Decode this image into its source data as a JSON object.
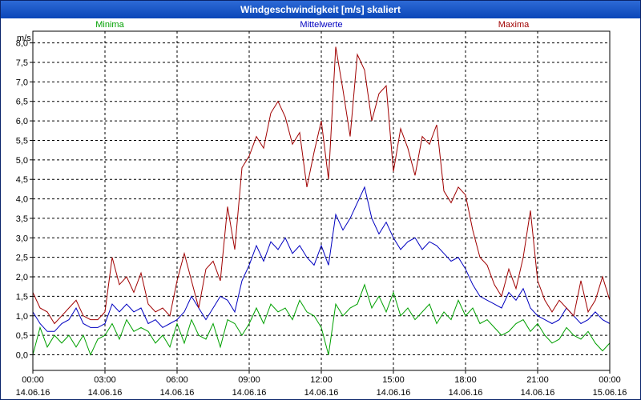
{
  "chart_data": {
    "type": "line",
    "title": "Windgeschwindigkeit [m/s] skaliert",
    "ylabel": "m/s",
    "ylim": [
      -0.4,
      8.3
    ],
    "yticks": [
      "0,0",
      "0,5",
      "1,0",
      "1,5",
      "2,0",
      "2,5",
      "3,0",
      "3,5",
      "4,0",
      "4,5",
      "5,0",
      "5,5",
      "6,0",
      "6,5",
      "7,0",
      "7,5",
      "8,0"
    ],
    "x_ticks": [
      {
        "time": "00:00",
        "date": "14.06.16"
      },
      {
        "time": "03:00",
        "date": "14.06.16"
      },
      {
        "time": "06:00",
        "date": "14.06.16"
      },
      {
        "time": "09:00",
        "date": "14.06.16"
      },
      {
        "time": "12:00",
        "date": "14.06.16"
      },
      {
        "time": "15:00",
        "date": "14.06.16"
      },
      {
        "time": "18:00",
        "date": "14.06.16"
      },
      {
        "time": "21:00",
        "date": "14.06.16"
      },
      {
        "time": "00:00",
        "date": "15.06.16"
      }
    ],
    "x_unit": "hours since 14.06.16 00:00",
    "xlim": [
      0,
      24
    ],
    "grid": true,
    "series": [
      {
        "name": "Minima",
        "color": "#00a000",
        "x": [
          0,
          0.3,
          0.6,
          0.9,
          1.2,
          1.5,
          1.8,
          2.1,
          2.4,
          2.7,
          3.0,
          3.3,
          3.6,
          3.9,
          4.2,
          4.5,
          4.8,
          5.1,
          5.4,
          5.7,
          6.0,
          6.3,
          6.6,
          6.9,
          7.2,
          7.5,
          7.8,
          8.1,
          8.4,
          8.7,
          9.0,
          9.3,
          9.6,
          9.9,
          10.2,
          10.5,
          10.8,
          11.1,
          11.4,
          11.7,
          12.0,
          12.3,
          12.6,
          12.9,
          13.2,
          13.5,
          13.8,
          14.1,
          14.4,
          14.7,
          15.0,
          15.3,
          15.6,
          15.9,
          16.2,
          16.5,
          16.8,
          17.1,
          17.4,
          17.7,
          18.0,
          18.3,
          18.6,
          18.9,
          19.2,
          19.5,
          19.8,
          20.1,
          20.4,
          20.7,
          21.0,
          21.3,
          21.6,
          21.9,
          22.2,
          22.5,
          22.8,
          23.1,
          23.4,
          23.7,
          24.0
        ],
        "values": [
          0.0,
          0.7,
          0.2,
          0.5,
          0.3,
          0.5,
          0.2,
          0.5,
          0.0,
          0.4,
          0.5,
          0.8,
          0.4,
          0.9,
          0.6,
          0.7,
          0.6,
          0.3,
          0.5,
          0.2,
          0.8,
          0.3,
          0.9,
          0.5,
          0.4,
          0.8,
          0.2,
          0.9,
          0.8,
          0.5,
          0.8,
          1.2,
          0.8,
          1.3,
          1.1,
          1.2,
          0.9,
          1.4,
          1.1,
          1.0,
          0.7,
          0.0,
          1.3,
          1.0,
          1.2,
          1.3,
          1.8,
          1.2,
          1.5,
          1.1,
          1.6,
          1.0,
          1.2,
          0.9,
          1.1,
          1.3,
          0.8,
          1.1,
          0.9,
          1.4,
          1.0,
          1.2,
          0.8,
          0.9,
          0.7,
          0.5,
          0.6,
          0.8,
          0.9,
          0.6,
          0.8,
          0.5,
          0.3,
          0.4,
          0.7,
          0.5,
          0.4,
          0.6,
          0.3,
          0.1,
          0.3
        ]
      },
      {
        "name": "Mittelwerte",
        "color": "#0000c0",
        "x": [
          0,
          0.3,
          0.6,
          0.9,
          1.2,
          1.5,
          1.8,
          2.1,
          2.4,
          2.7,
          3.0,
          3.3,
          3.6,
          3.9,
          4.2,
          4.5,
          4.8,
          5.1,
          5.4,
          5.7,
          6.0,
          6.3,
          6.6,
          6.9,
          7.2,
          7.5,
          7.8,
          8.1,
          8.4,
          8.7,
          9.0,
          9.3,
          9.6,
          9.9,
          10.2,
          10.5,
          10.8,
          11.1,
          11.4,
          11.7,
          12.0,
          12.3,
          12.6,
          12.9,
          13.2,
          13.5,
          13.8,
          14.1,
          14.4,
          14.7,
          15.0,
          15.3,
          15.6,
          15.9,
          16.2,
          16.5,
          16.8,
          17.1,
          17.4,
          17.7,
          18.0,
          18.3,
          18.6,
          18.9,
          19.2,
          19.5,
          19.8,
          20.1,
          20.4,
          20.7,
          21.0,
          21.3,
          21.6,
          21.9,
          22.2,
          22.5,
          22.8,
          23.1,
          23.4,
          23.7,
          24.0
        ],
        "values": [
          1.1,
          0.8,
          0.6,
          0.6,
          0.8,
          0.9,
          1.2,
          0.8,
          0.7,
          0.7,
          0.8,
          1.3,
          1.1,
          1.3,
          1.1,
          1.2,
          0.8,
          0.9,
          0.7,
          0.8,
          0.9,
          1.1,
          1.5,
          1.2,
          0.9,
          1.2,
          1.5,
          1.4,
          1.1,
          1.9,
          2.3,
          2.8,
          2.4,
          2.9,
          2.7,
          3.0,
          2.6,
          2.8,
          2.5,
          2.3,
          2.8,
          2.3,
          3.6,
          3.2,
          3.5,
          3.9,
          4.3,
          3.5,
          3.1,
          3.4,
          3.0,
          2.7,
          2.9,
          3.0,
          2.7,
          2.9,
          2.8,
          2.6,
          2.4,
          2.5,
          2.2,
          1.8,
          1.5,
          1.4,
          1.3,
          1.2,
          1.6,
          1.4,
          1.7,
          1.2,
          1.0,
          0.9,
          0.8,
          0.9,
          1.2,
          1.0,
          0.8,
          0.9,
          1.1,
          0.9,
          0.8
        ]
      },
      {
        "name": "Maxima",
        "color": "#a00000",
        "x": [
          0,
          0.3,
          0.6,
          0.9,
          1.2,
          1.5,
          1.8,
          2.1,
          2.4,
          2.7,
          3.0,
          3.3,
          3.6,
          3.9,
          4.2,
          4.5,
          4.8,
          5.1,
          5.4,
          5.7,
          6.0,
          6.3,
          6.6,
          6.9,
          7.2,
          7.5,
          7.8,
          8.1,
          8.4,
          8.7,
          9.0,
          9.3,
          9.6,
          9.9,
          10.2,
          10.5,
          10.8,
          11.1,
          11.4,
          11.7,
          12.0,
          12.3,
          12.6,
          12.9,
          13.2,
          13.5,
          13.8,
          14.1,
          14.4,
          14.7,
          15.0,
          15.3,
          15.6,
          15.9,
          16.2,
          16.5,
          16.8,
          17.1,
          17.4,
          17.7,
          18.0,
          18.3,
          18.6,
          18.9,
          19.2,
          19.5,
          19.8,
          20.1,
          20.4,
          20.7,
          21.0,
          21.3,
          21.6,
          21.9,
          22.2,
          22.5,
          22.8,
          23.1,
          23.4,
          23.7,
          24.0
        ],
        "values": [
          1.6,
          1.2,
          1.1,
          0.8,
          1.0,
          1.2,
          1.4,
          1.0,
          0.9,
          0.9,
          1.1,
          2.5,
          1.8,
          2.0,
          1.6,
          2.1,
          1.3,
          1.1,
          1.2,
          1.0,
          1.9,
          2.6,
          1.9,
          1.2,
          2.2,
          2.4,
          1.9,
          3.8,
          2.7,
          4.8,
          5.1,
          5.6,
          5.3,
          6.2,
          6.5,
          6.1,
          5.4,
          5.7,
          4.3,
          5.2,
          6.0,
          4.5,
          7.9,
          6.8,
          5.6,
          7.7,
          7.3,
          6.0,
          6.7,
          6.9,
          4.7,
          5.8,
          5.3,
          4.6,
          5.6,
          5.4,
          5.9,
          4.2,
          3.9,
          4.3,
          4.1,
          3.2,
          2.5,
          2.3,
          1.8,
          1.5,
          2.2,
          1.7,
          2.5,
          3.7,
          1.9,
          1.4,
          1.1,
          1.4,
          1.2,
          1.0,
          1.9,
          1.1,
          1.4,
          2.0,
          1.4
        ]
      }
    ]
  }
}
